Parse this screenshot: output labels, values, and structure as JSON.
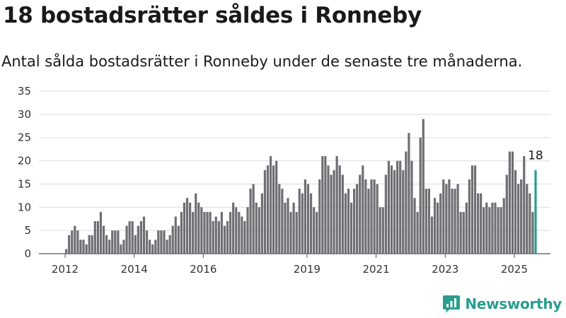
{
  "header": {
    "title": "18 bostadsrätter såldes i Ronneby",
    "subtitle": "Antal sålda bostadsrätter i Ronneby under de senaste tre månaderna."
  },
  "brand": {
    "name": "Newsworthy",
    "icon": "newsworthy-logo-icon",
    "color": "#2a9d8f"
  },
  "chart_data": {
    "type": "bar",
    "title": "",
    "xlabel": "",
    "ylabel": "",
    "ylim": [
      0,
      35
    ],
    "yticks": [
      "0",
      "5",
      "10",
      "15",
      "20",
      "25",
      "30",
      "35"
    ],
    "xticks": [
      {
        "label": "2012",
        "x": 2012
      },
      {
        "label": "2014",
        "x": 2014
      },
      {
        "label": "2016",
        "x": 2016
      },
      {
        "label": "2019",
        "x": 2019
      },
      {
        "label": "2021",
        "x": 2021
      },
      {
        "label": "2023",
        "x": 2023
      },
      {
        "label": "2025",
        "x": 2025
      }
    ],
    "x_start": 2012.0,
    "x_step": 0.08333,
    "grid": true,
    "bar_color": "#6f6e73",
    "highlight_color": "#2a9d8f",
    "highlight_label": "18",
    "values": [
      1,
      4,
      5,
      6,
      5,
      3,
      3,
      2,
      4,
      4,
      7,
      7,
      9,
      6,
      4,
      3,
      5,
      5,
      5,
      2,
      3,
      6,
      7,
      7,
      4,
      6,
      7,
      8,
      5,
      3,
      2,
      3,
      5,
      5,
      5,
      3,
      4,
      6,
      8,
      6,
      9,
      11,
      12,
      11,
      9,
      13,
      11,
      10,
      9,
      9,
      9,
      7,
      8,
      7,
      9,
      6,
      7,
      9,
      11,
      10,
      9,
      8,
      7,
      10,
      14,
      15,
      11,
      10,
      13,
      18,
      19,
      21,
      19,
      20,
      15,
      14,
      11,
      12,
      9,
      11,
      9,
      14,
      13,
      16,
      15,
      13,
      10,
      9,
      16,
      21,
      21,
      19,
      17,
      18,
      21,
      19,
      17,
      13,
      14,
      11,
      14,
      15,
      17,
      19,
      16,
      14,
      16,
      16,
      15,
      10,
      10,
      17,
      20,
      19,
      18,
      20,
      20,
      18,
      22,
      26,
      20,
      12,
      9,
      25,
      29,
      14,
      14,
      8,
      12,
      11,
      13,
      16,
      15,
      16,
      14,
      14,
      15,
      9,
      9,
      11,
      16,
      19,
      19,
      13,
      13,
      10,
      11,
      10,
      11,
      11,
      10,
      10,
      12,
      17,
      22,
      22,
      18,
      15,
      16,
      21,
      15,
      13,
      9,
      18
    ]
  }
}
